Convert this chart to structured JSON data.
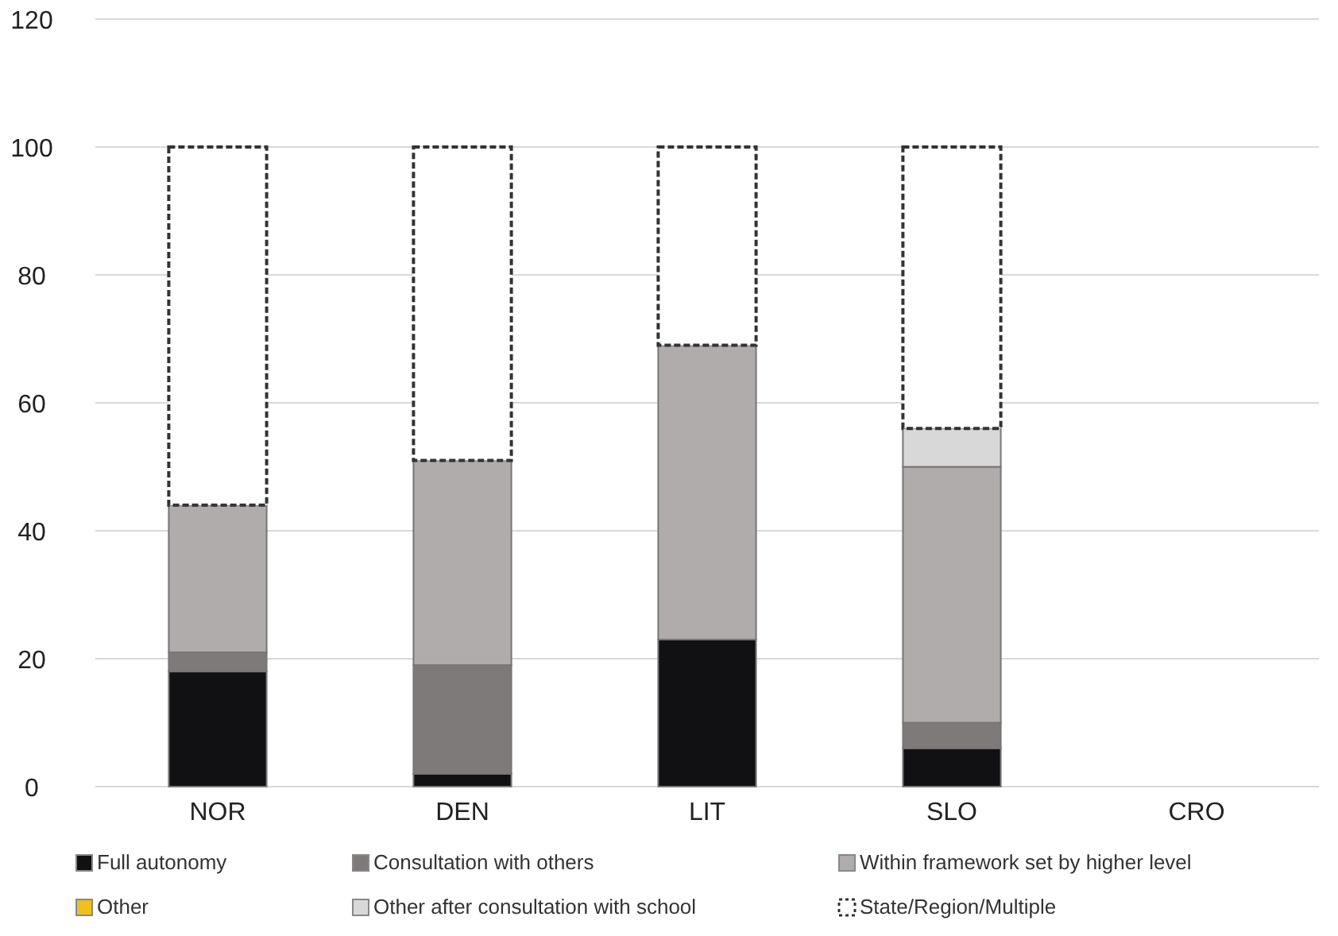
{
  "chart_data": {
    "type": "bar",
    "stacked": true,
    "categories": [
      "NOR",
      "DEN",
      "LIT",
      "SLO",
      "CRO"
    ],
    "series": [
      {
        "name": "Full autonomy",
        "color": "#111114",
        "values": [
          18,
          2,
          23,
          6,
          0
        ]
      },
      {
        "name": "Consultation with others",
        "color": "#7f7a7a",
        "values": [
          3,
          17,
          0,
          4,
          0
        ]
      },
      {
        "name": "Within framework set by higher level",
        "color": "#b0acac",
        "values": [
          23,
          32,
          46,
          40,
          0
        ]
      },
      {
        "name": "Other",
        "color": "#f0c020",
        "values": [
          0,
          0,
          0,
          0,
          0
        ]
      },
      {
        "name": "Other after consultation with school",
        "color": "#d8d8d8",
        "values": [
          0,
          0,
          0,
          6,
          0
        ]
      },
      {
        "name": "State/Region/Multiple",
        "color": "#ffffff",
        "line_style": "dashed",
        "values": [
          56,
          49,
          31,
          44,
          0
        ]
      }
    ],
    "ylim": [
      0,
      120
    ],
    "yticks": [
      0,
      20,
      40,
      60,
      80,
      100,
      120
    ],
    "grid": "y",
    "legend": "bottom"
  }
}
